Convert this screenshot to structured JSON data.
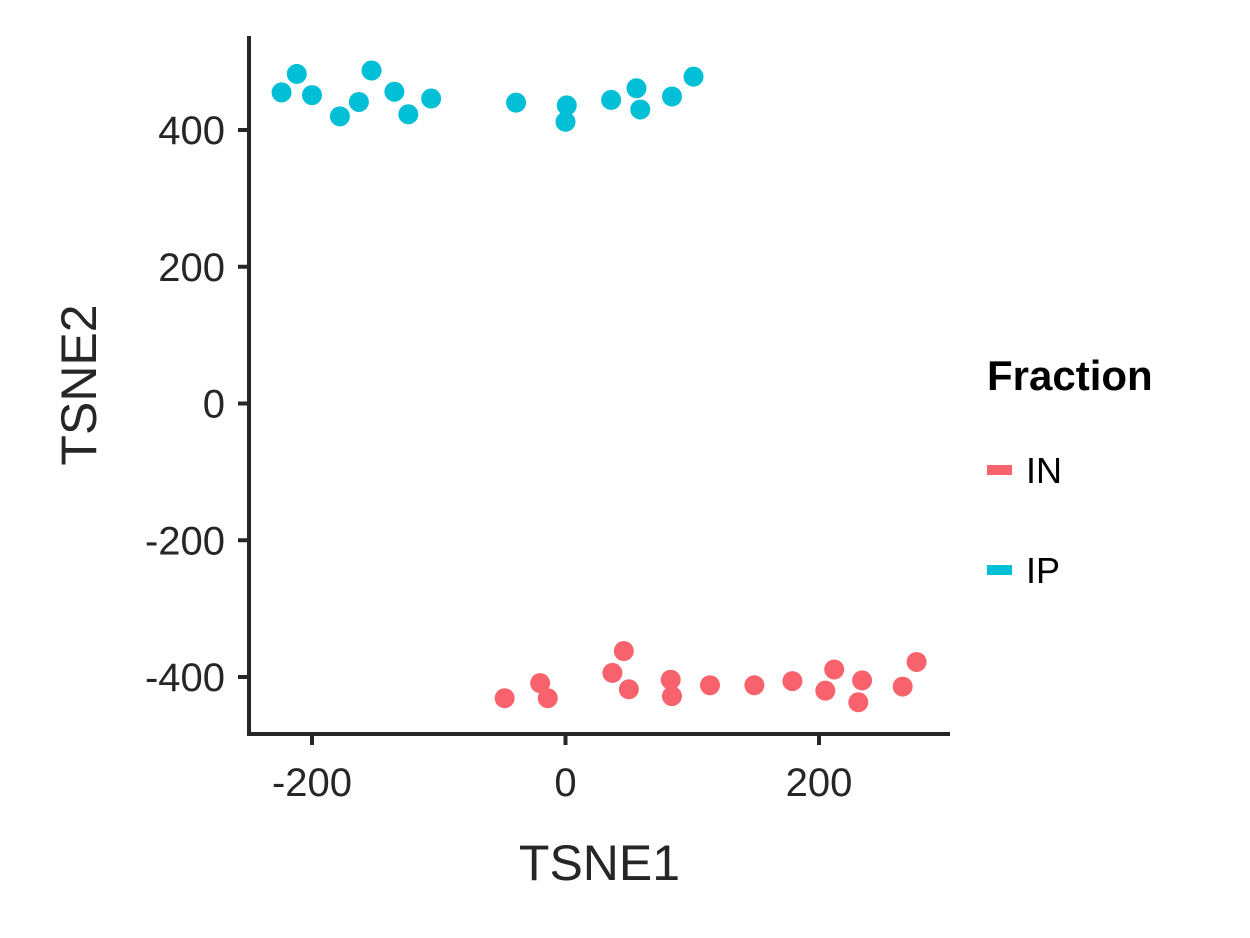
{
  "chart_data": {
    "type": "scatter",
    "title": "",
    "xlabel": "TSNE1",
    "ylabel": "TSNE2",
    "xlim": [
      -250,
      300
    ],
    "ylim": [
      -485,
      540
    ],
    "xticks": [
      -200,
      0,
      200
    ],
    "yticks": [
      -400,
      -200,
      0,
      200,
      400
    ],
    "grid": false,
    "legend": {
      "title": "Fraction",
      "placement": "right"
    },
    "series": [
      {
        "name": "IN",
        "color": "#F8626C",
        "points": [
          {
            "x": -48,
            "y": -431
          },
          {
            "x": -20,
            "y": -409
          },
          {
            "x": -14,
            "y": -431
          },
          {
            "x": 37,
            "y": -394
          },
          {
            "x": 46,
            "y": -362
          },
          {
            "x": 50,
            "y": -418
          },
          {
            "x": 83,
            "y": -404
          },
          {
            "x": 84,
            "y": -428
          },
          {
            "x": 114,
            "y": -412
          },
          {
            "x": 149,
            "y": -412
          },
          {
            "x": 179,
            "y": -406
          },
          {
            "x": 205,
            "y": -420
          },
          {
            "x": 212,
            "y": -389
          },
          {
            "x": 231,
            "y": -437
          },
          {
            "x": 234,
            "y": -405
          },
          {
            "x": 266,
            "y": -414
          },
          {
            "x": 277,
            "y": -378
          }
        ]
      },
      {
        "name": "IP",
        "color": "#00BFD6",
        "points": [
          {
            "x": -224,
            "y": 455
          },
          {
            "x": -212,
            "y": 482
          },
          {
            "x": -200,
            "y": 451
          },
          {
            "x": -178,
            "y": 420
          },
          {
            "x": -163,
            "y": 441
          },
          {
            "x": -153,
            "y": 487
          },
          {
            "x": -135,
            "y": 456
          },
          {
            "x": -124,
            "y": 423
          },
          {
            "x": -106,
            "y": 446
          },
          {
            "x": -39,
            "y": 440
          },
          {
            "x": 1,
            "y": 436
          },
          {
            "x": 0,
            "y": 412
          },
          {
            "x": 36,
            "y": 444
          },
          {
            "x": 56,
            "y": 461
          },
          {
            "x": 59,
            "y": 430
          },
          {
            "x": 84,
            "y": 449
          },
          {
            "x": 101,
            "y": 478
          }
        ]
      }
    ]
  }
}
